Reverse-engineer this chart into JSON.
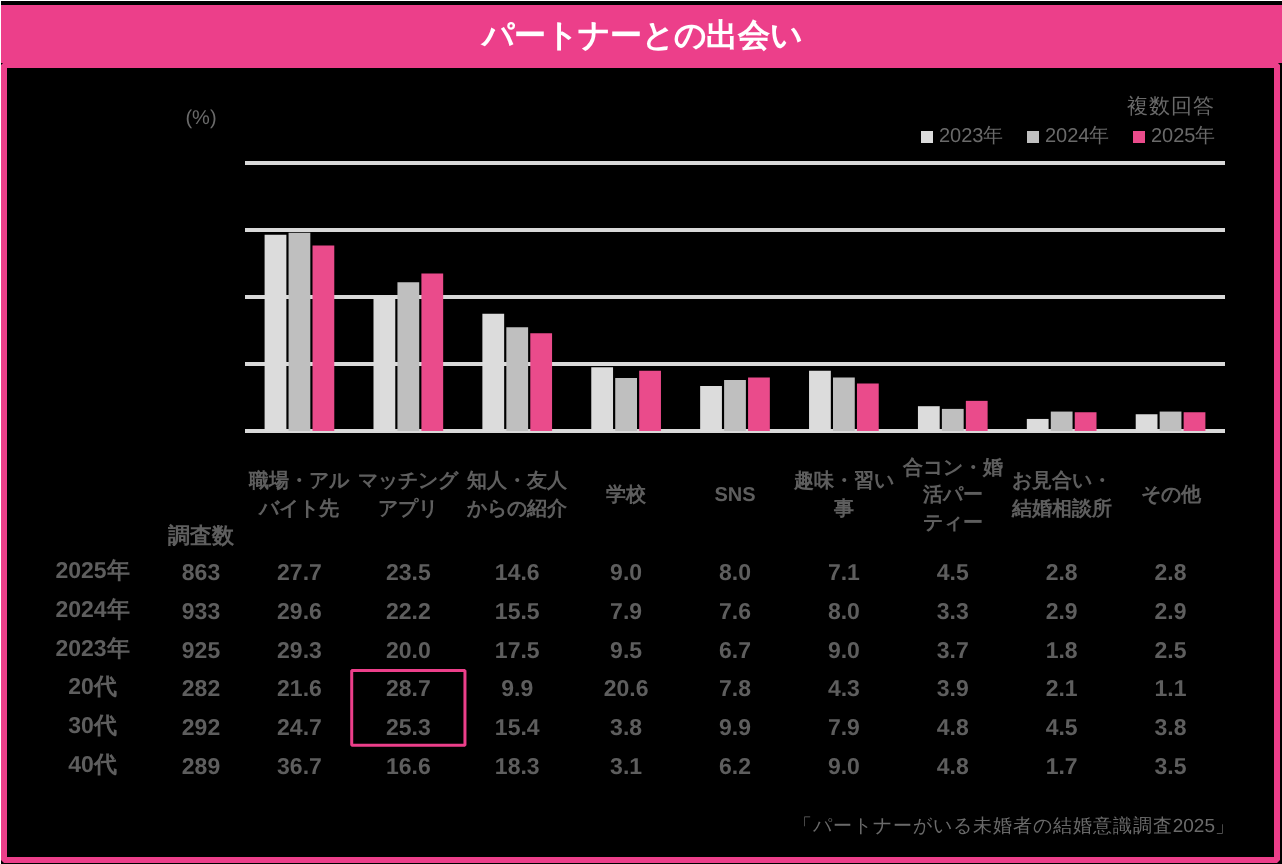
{
  "chart_data": {
    "type": "bar",
    "title": "パートナーとの出会い",
    "ylabel": "(%)",
    "y2label": "調査数",
    "annotations": [
      "複数回答",
      "「パートナーがいる未婚者の結婚意識調査2025」"
    ],
    "categories": [
      "職場・アルバイト先",
      "マッチングアプリ",
      "知人・友人からの紹介",
      "学校",
      "SNS",
      "趣味・習い事",
      "合コン・婚活パーティー",
      "お見合い・結婚相談所",
      "その他"
    ],
    "series": [
      {
        "name": "2023年",
        "color": "#dcdcdc",
        "values": [
          29.3,
          20.0,
          17.5,
          9.5,
          6.7,
          9.0,
          3.7,
          1.8,
          2.5
        ],
        "value_labels": [
          "29.3",
          "20.0",
          "17.5",
          "9.5",
          "6.7",
          "9.0",
          "3.7",
          "1.8",
          "2.5"
        ]
      },
      {
        "name": "2024年",
        "color": "#bfbfbf",
        "values": [
          29.6,
          22.2,
          15.5,
          7.9,
          7.6,
          8.0,
          3.3,
          2.9,
          2.9
        ],
        "value_labels": [
          "29.6",
          "22.2",
          "15.5",
          "7.9",
          "7.6",
          "8.0",
          "3.3",
          "2.9",
          "2.9"
        ]
      },
      {
        "name": "2025年",
        "color": "#ea4b8b",
        "values": [
          27.7,
          23.5,
          14.6,
          9.0,
          8.0,
          7.1,
          4.5,
          2.8,
          2.8
        ],
        "value_labels": [
          "27.7",
          "23.5",
          "14.6",
          "9.0",
          "8.0",
          "7.1",
          "4.5",
          "2.8",
          "2.8"
        ]
      }
    ],
    "y_categories": [
      "20代",
      "30代",
      "40代"
    ],
    "y2_categories": [
      "863",
      "933",
      "925",
      "282",
      "292",
      "289"
    ],
    "cell_labels": [
      [
        "21.6",
        "28.7",
        "9.9",
        "20.6",
        "7.8",
        "4.3",
        "3.9",
        "2.1",
        "1.1"
      ],
      [
        "24.7",
        "25.3",
        "15.4",
        "3.8",
        "9.9",
        "7.9",
        "4.8",
        "4.5",
        "3.8"
      ],
      [
        "36.7",
        "16.6",
        "18.3",
        "3.1",
        "6.2",
        "9.0",
        "4.8",
        "1.7",
        "3.5"
      ]
    ],
    "ylim": [
      0,
      40
    ],
    "yticks": [
      {
        "value": 0,
        "label": null
      },
      {
        "value": 10,
        "label": null
      },
      {
        "value": 20,
        "label": null
      },
      {
        "value": 30,
        "label": null
      },
      {
        "value": 40,
        "label": null
      }
    ],
    "grid": "y",
    "legend": "top right",
    "tick_labels": "x"
  }
}
